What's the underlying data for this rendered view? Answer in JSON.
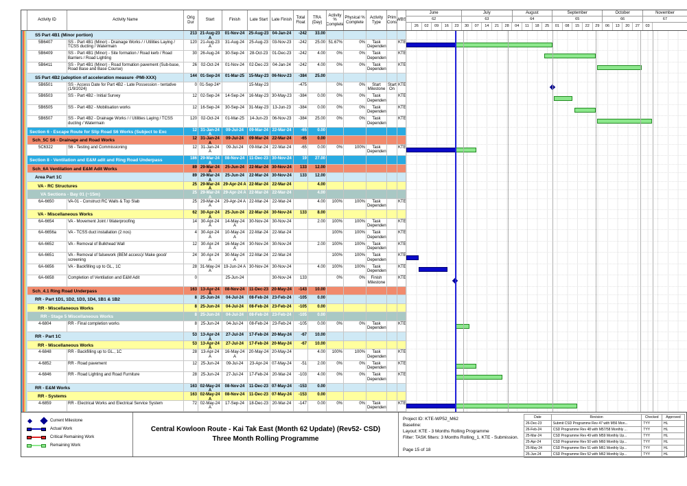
{
  "title": {
    "line1": "Central Kowloon Route - Kai Tak East (Month 62 Update) (Rev52- CSD)",
    "line2": "Three Month Rolling Programme"
  },
  "table": {
    "columns": [
      "Activity ID",
      "Activity Name",
      "Orig Dur",
      "Start",
      "Finish",
      "Late Start",
      "Late Finish",
      "Total Float",
      "TRA (Day)",
      "Activity % Complete",
      "Physical % Complete",
      "Activity Type",
      "Prim Cons",
      "WBS"
    ]
  },
  "timeline": {
    "months": [
      {
        "label": "June",
        "num": "62",
        "weeks": [
          "26",
          "02",
          "09",
          "16",
          "23"
        ],
        "lead": 8
      },
      {
        "label": "July",
        "num": "63",
        "weeks": [
          "30",
          "07",
          "14",
          "21",
          "28"
        ],
        "lead": 0
      },
      {
        "label": "August",
        "num": "64",
        "weeks": [
          "04",
          "11",
          "18",
          "25"
        ],
        "lead": 0
      },
      {
        "label": "September",
        "num": "65",
        "weeks": [
          "01",
          "08",
          "15",
          "22",
          "29"
        ],
        "lead": 0
      },
      {
        "label": "October",
        "num": "66",
        "weeks": [
          "06",
          "13",
          "20",
          "27"
        ],
        "lead": 0
      },
      {
        "label": "November",
        "num": "67",
        "weeks": [
          "03"
        ],
        "lead": 0,
        "fill": true
      }
    ]
  },
  "gantt": {
    "data_date_x": 71,
    "month_lines": [
      83,
      148,
      213,
      276,
      341
    ],
    "right_edge": 359
  },
  "rows": [
    {
      "t": "part",
      "nm": "S5 Part 4B1 (Minor portion)",
      "d": "213",
      "s": "21-Aug-23 A",
      "f": "01-Nov-24",
      "ls": "25-Aug-23",
      "lf": "04-Jan-24",
      "tf": "-242",
      "tra": "33.00",
      "ap": "",
      "pp": "",
      "at": "",
      "pc": "",
      "wbs": ""
    },
    {
      "t": "task",
      "id": "5B6407",
      "nm": "SS - Part 4B1 (Minor) -  Drainage Works /  / Utilities Laying / TCSS ducting / Watermain",
      "d": "120",
      "s": "21-Aug-23 A",
      "f": "31-Aug-24",
      "ls": "25-Aug-23",
      "lf": "03-Nov-23",
      "tf": "-242",
      "tra": "25.00",
      "ap": "51.67%",
      "pp": "0%",
      "at": "Task Dependent",
      "pc": "",
      "wbs": "KTE-",
      "bar": {
        "a": [
          0,
          71
        ],
        "r": [
          71,
          140
        ]
      }
    },
    {
      "t": "task",
      "id": "5B6409",
      "nm": "SS - Part 4B1 (Minor) - Site formation / Road kerb / Road Barriers / Road Lighting",
      "d": "30",
      "s": "26-Aug-24",
      "f": "30-Sep-24",
      "ls": "28-Oct-23",
      "lf": "01-Dec-23",
      "tf": "-242",
      "tra": "4.00",
      "ap": "0%",
      "pp": "0%",
      "at": "Task Dependent",
      "pc": "",
      "wbs": "KTE-",
      "bar": {
        "r": [
          201,
          73
        ]
      }
    },
    {
      "t": "task",
      "id": "5B6411",
      "nm": "SS - Part 4B1 (Minor) - Road formation pavement (Sub-base, Road Base and Base Course)",
      "d": "26",
      "s": "02-Oct-24",
      "f": "01-Nov-24",
      "ls": "02-Dec-23",
      "lf": "04-Jan-24",
      "tf": "-242",
      "tra": "4.00",
      "ap": "0%",
      "pp": "0%",
      "at": "Task Dependent",
      "pc": "",
      "wbs": "KTE-",
      "bar": {
        "r": [
          278,
          63
        ]
      }
    },
    {
      "t": "part",
      "nm": "S5 Part 4B2 (adoption of acceleration measure -PMI-XXX)",
      "d": "144",
      "s": "01-Sep-24",
      "f": "01-Mar-25",
      "ls": "15-May-23",
      "lf": "06-Nov-23",
      "tf": "-384",
      "tra": "25.00",
      "ap": "",
      "pp": "",
      "at": "",
      "pc": "",
      "wbs": ""
    },
    {
      "t": "task",
      "id": "5B6501",
      "nm": "SS - Access Date for Part 4B2 - Late Possession - tentative (1/9/2024)",
      "d": "0",
      "s": "01-Sep-24*",
      "f": "",
      "ls": "15-May-23",
      "lf": "",
      "tf": "-475",
      "tra": "",
      "ap": "0%",
      "pp": "0%",
      "at": "Start Milestone",
      "pc": "Start On",
      "wbs": "KTE-",
      "bar": {
        "m": 213
      }
    },
    {
      "t": "task",
      "id": "5B6503",
      "nm": "SS - Part 4B2 -  Initial Survey",
      "d": "12",
      "s": "02-Sep-24",
      "f": "14-Sep-24",
      "ls": "16-May-23",
      "lf": "30-May-23",
      "tf": "-384",
      "tra": "0.00",
      "ap": "0%",
      "pp": "0%",
      "at": "Task Dependent",
      "pc": "",
      "wbs": "KTE-",
      "bar": {
        "r": [
          215,
          25
        ]
      }
    },
    {
      "t": "task",
      "id": "5B6505",
      "nm": "SS - Part 4B2 - Mobilisation works",
      "d": "12",
      "s": "16-Sep-24",
      "f": "30-Sep-24",
      "ls": "31-May-23",
      "lf": "13-Jun-23",
      "tf": "-384",
      "tra": "0.00",
      "ap": "0%",
      "pp": "0%",
      "at": "Task Dependent",
      "pc": "",
      "wbs": "KTE-",
      "bar": {
        "r": [
          245,
          29
        ]
      }
    },
    {
      "t": "task",
      "id": "5B6507",
      "nm": "SS - Part 4B2 -  Drainage Works /  / Utilities Laying / TCSS ducting / Watermain",
      "d": "120",
      "s": "02-Oct-24",
      "f": "01-Mar-25",
      "ls": "14-Jun-23",
      "lf": "06-Nov-23",
      "tf": "-384",
      "tra": "25.00",
      "ap": "0%",
      "pp": "0%",
      "at": "Task Dependent",
      "pc": "",
      "wbs": "KTE-",
      "bar": {
        "r": [
          278,
          78
        ]
      }
    },
    {
      "t": "section",
      "nm": "Section 6 - Escape Route for Slip Road S6 Works (Subject to Exc",
      "d": "12",
      "s": "31-Jan-24 A",
      "f": "09-Jul-24",
      "ls": "09-Mar-24",
      "lf": "22-Mar-24",
      "tf": "-65",
      "tra": "0.00",
      "ap": "",
      "pp": "",
      "at": "",
      "pc": "",
      "wbs": ""
    },
    {
      "t": "sch",
      "nm": "Sch_5C S6 - Drainage and Road Works",
      "d": "12",
      "s": "31-Jan-24 A",
      "f": "09-Jul-24",
      "ls": "09-Mar-24",
      "lf": "22-Mar-24",
      "tf": "-65",
      "tra": "0.00",
      "ap": "",
      "pp": "",
      "at": "",
      "pc": "",
      "wbs": ""
    },
    {
      "t": "task",
      "id": "5C6322",
      "nm": "S6 - Testing and Commissioning",
      "d": "12",
      "s": "31-Jan-24 A",
      "f": "09-Jul-24",
      "ls": "09-Mar-24",
      "lf": "22-Mar-24",
      "tf": "-65",
      "tra": "0.00",
      "ap": "0%",
      "pp": "100%",
      "at": "Task Dependent",
      "pc": "",
      "wbs": "KTE-",
      "bar": {
        "a": [
          0,
          71
        ],
        "r": [
          71,
          29
        ]
      }
    },
    {
      "t": "section",
      "nm": "Section 8 - Ventilation and E&M adit and Ring Road Underpass",
      "d": "186",
      "s": "29-Mar-24 A",
      "f": "08-Nov-24",
      "ls": "11-Dec-23",
      "lf": "30-Nov-24",
      "tf": "19",
      "tra": "27.00",
      "ap": "",
      "pp": "",
      "at": "",
      "pc": "",
      "wbs": ""
    },
    {
      "t": "sch",
      "nm": "Sch_6A Ventilation and E&M Adit Works",
      "d": "89",
      "s": "29-Mar-24 A",
      "f": "25-Jun-24",
      "ls": "22-Mar-24",
      "lf": "30-Nov-24",
      "tf": "133",
      "tra": "12.00",
      "ap": "",
      "pp": "",
      "at": "",
      "pc": "",
      "wbs": ""
    },
    {
      "t": "part",
      "nm": "Area Part 1C",
      "d": "89",
      "s": "29-Mar-24 A",
      "f": "25-Jun-24",
      "ls": "22-Mar-24",
      "lf": "30-Nov-24",
      "tf": "133",
      "tra": "12.00",
      "ap": "",
      "pp": "",
      "at": "",
      "pc": "",
      "wbs": ""
    },
    {
      "t": "sub",
      "nm": "VA - RC Structures",
      "d": "25",
      "s": "29-Mar-24 A",
      "f": "29-Apr-24 A",
      "ls": "22-Mar-24",
      "lf": "22-Mar-24",
      "tf": "",
      "tra": "4.00",
      "ap": "",
      "pp": "",
      "at": "",
      "pc": "",
      "wbs": ""
    },
    {
      "t": "bay",
      "nm": "VA Sections - Bay 01 (~15m)",
      "d": "25",
      "s": "29-Mar-24 A",
      "f": "29-Apr-24 A",
      "ls": "22-Mar-24",
      "lf": "22-Mar-24",
      "tf": "",
      "tra": "4.00",
      "ap": "",
      "pp": "",
      "at": "",
      "pc": "",
      "wbs": ""
    },
    {
      "t": "task",
      "id": "6A-6650",
      "nm": "VA-01 - Construct RC Walls & Top Slab",
      "d": "25",
      "s": "29-Mar-24 A",
      "f": "29-Apr-24 A",
      "ls": "22-Mar-24",
      "lf": "22-Mar-24",
      "tf": "",
      "tra": "4.00",
      "ap": "100%",
      "pp": "100%",
      "at": "Task Dependent",
      "pc": "",
      "wbs": "KTE-"
    },
    {
      "t": "sub",
      "nm": "VA - Miscellaneous Works",
      "d": "62",
      "s": "30-Apr-24 A",
      "f": "25-Jun-24",
      "ls": "22-Mar-24",
      "lf": "30-Nov-24",
      "tf": "133",
      "tra": "8.00",
      "ap": "",
      "pp": "",
      "at": "",
      "pc": "",
      "wbs": ""
    },
    {
      "t": "task",
      "id": "6A-6654",
      "nm": "VA - Movement Joint / Waterproofing",
      "d": "14",
      "s": "30-Apr-24 A",
      "f": "14-May-24 A",
      "ls": "30-Nov-24",
      "lf": "30-Nov-24",
      "tf": "",
      "tra": "2.00",
      "ap": "100%",
      "pp": "100%",
      "at": "Task Dependent",
      "pc": "",
      "wbs": "KTE-"
    },
    {
      "t": "task",
      "id": "6A-6656a",
      "nm": "VA - TCSS duct installation (2 nos)",
      "d": "4",
      "s": "30-Apr-24 A",
      "f": "10-May-24 A",
      "ls": "22-Mar-24",
      "lf": "22-Mar-24",
      "tf": "",
      "tra": "",
      "ap": "100%",
      "pp": "100%",
      "at": "Task Dependent",
      "pc": "",
      "wbs": "KTE-"
    },
    {
      "t": "task",
      "id": "6A-6652",
      "nm": "VA - Removal of Bulkhead Wall",
      "d": "12",
      "s": "30-Apr-24 A",
      "f": "16-May-24 A",
      "ls": "30-Nov-24",
      "lf": "30-Nov-24",
      "tf": "",
      "tra": "2.00",
      "ap": "100%",
      "pp": "100%",
      "at": "Task Dependent",
      "pc": "",
      "wbs": "KTE-"
    },
    {
      "t": "task",
      "id": "6A-6651",
      "nm": "VA - Removal of falsework (BEM access)/ Make good/ screening",
      "d": "24",
      "s": "30-Apr-24 A",
      "f": "30-May-24 A",
      "ls": "22-Mar-24",
      "lf": "22-Mar-24",
      "tf": "",
      "tra": "",
      "ap": "100%",
      "pp": "100%",
      "at": "Task Dependent",
      "pc": "",
      "wbs": "KTE-",
      "bar": {
        "a": [
          0,
          16
        ]
      }
    },
    {
      "t": "task",
      "id": "6A-6656",
      "nm": "VA - Backfilling up to GL., 1C",
      "d": "28",
      "s": "31-May-24 A",
      "f": "19-Jun-24 A",
      "ls": "30-Nov-24",
      "lf": "30-Nov-24",
      "tf": "",
      "tra": "4.00",
      "ap": "100%",
      "pp": "100%",
      "at": "Task Dependent",
      "pc": "",
      "wbs": "KTE-",
      "bar": {
        "a": [
          18,
          40
        ]
      }
    },
    {
      "t": "task",
      "id": "6A-6658",
      "nm": "Completion of Ventilation and E&M Adit",
      "d": "0",
      "s": "",
      "f": "25-Jun-24",
      "ls": "",
      "lf": "30-Nov-24",
      "tf": "133",
      "tra": "",
      "ap": "0%",
      "pp": "0%",
      "at": "Finish Milestone",
      "pc": "",
      "wbs": "KTE-",
      "bar": {
        "m": 71
      }
    },
    {
      "t": "sch",
      "nm": "Sch_4.1 Ring Road Underpass",
      "d": "163",
      "s": "13-Apr-24 A",
      "f": "08-Nov-24",
      "ls": "11-Dec-23",
      "lf": "20-May-24",
      "tf": "-143",
      "tra": "10.00",
      "ap": "",
      "pp": "",
      "at": "",
      "pc": "",
      "wbs": ""
    },
    {
      "t": "part",
      "nm": "RR - Part 1D1, 1D2, 1D3, 1D4, 1B1 & 1B2",
      "d": "8",
      "s": "25-Jun-24",
      "f": "04-Jul-24",
      "ls": "08-Feb-24",
      "lf": "23-Feb-24",
      "tf": "-105",
      "tra": "0.00",
      "ap": "",
      "pp": "",
      "at": "",
      "pc": "",
      "wbs": ""
    },
    {
      "t": "sub",
      "nm": "RR - Miscellaneous Works",
      "d": "8",
      "s": "25-Jun-24",
      "f": "04-Jul-24",
      "ls": "08-Feb-24",
      "lf": "23-Feb-24",
      "tf": "-105",
      "tra": "0.00",
      "ap": "",
      "pp": "",
      "at": "",
      "pc": "",
      "wbs": ""
    },
    {
      "t": "bay",
      "nm": "RR - Stage 5 Miscellaneous Works",
      "d": "8",
      "s": "25-Jun-24",
      "f": "04-Jul-24",
      "ls": "08-Feb-24",
      "lf": "23-Feb-24",
      "tf": "-105",
      "tra": "0.00",
      "ap": "",
      "pp": "",
      "at": "",
      "pc": "",
      "wbs": ""
    },
    {
      "t": "task",
      "id": "4-6804",
      "nm": "RR - Final completion works",
      "d": "8",
      "s": "25-Jun-24",
      "f": "04-Jul-24",
      "ls": "08-Feb-24",
      "lf": "23-Feb-24",
      "tf": "-105",
      "tra": "0.00",
      "ap": "0%",
      "pp": "0%",
      "at": "Task Dependent",
      "pc": "",
      "wbs": "KTE-",
      "bar": {
        "r": [
          71,
          19
        ]
      }
    },
    {
      "t": "part",
      "nm": "RR - Part 1C",
      "d": "53",
      "s": "13-Apr-24 A",
      "f": "27-Jul-24",
      "ls": "17-Feb-24",
      "lf": "20-May-24",
      "tf": "-67",
      "tra": "10.00",
      "ap": "",
      "pp": "",
      "at": "",
      "pc": "",
      "wbs": ""
    },
    {
      "t": "sub",
      "nm": "RR - Miscellaneous Works",
      "d": "53",
      "s": "13-Apr-24 A",
      "f": "27-Jul-24",
      "ls": "17-Feb-24",
      "lf": "20-May-24",
      "tf": "-67",
      "tra": "10.00",
      "ap": "",
      "pp": "",
      "at": "",
      "pc": "",
      "wbs": ""
    },
    {
      "t": "task",
      "id": "4-6848",
      "nm": "RR - Backfilling up to GL., 1C",
      "d": "28",
      "s": "13-Apr-24 A",
      "f": "16-May-24 A",
      "ls": "20-May-24",
      "lf": "20-May-24",
      "tf": "",
      "tra": "4.00",
      "ap": "100%",
      "pp": "100%",
      "at": "Task Dependent",
      "pc": "",
      "wbs": "KTE-"
    },
    {
      "t": "task",
      "id": "4-6852",
      "nm": "RR - Road pavement",
      "d": "12",
      "s": "25-Jun-24",
      "f": "09-Jul-24",
      "ls": "23-Apr-24",
      "lf": "07-May-24",
      "tf": "-51",
      "tra": "2.00",
      "ap": "0%",
      "pp": "0%",
      "at": "Task Dependent",
      "pc": "",
      "wbs": "KTE-",
      "bar": {
        "r": [
          71,
          29
        ]
      }
    },
    {
      "t": "task",
      "id": "4-6846",
      "nm": "RR - Road Lighting and Road Furniture",
      "d": "28",
      "s": "25-Jun-24",
      "f": "27-Jul-24",
      "ls": "17-Feb-24",
      "lf": "20-Mar-24",
      "tf": "-103",
      "tra": "4.00",
      "ap": "0%",
      "pp": "0%",
      "at": "Task Dependent",
      "pc": "",
      "wbs": "KTE-",
      "bar": {
        "r": [
          71,
          67
        ]
      }
    },
    {
      "t": "part",
      "nm": "RR - E&M Works",
      "d": "163",
      "s": "02-May-24 A",
      "f": "08-Nov-24",
      "ls": "11-Dec-23",
      "lf": "07-May-24",
      "tf": "-153",
      "tra": "0.00",
      "ap": "",
      "pp": "",
      "at": "",
      "pc": "",
      "wbs": ""
    },
    {
      "t": "sub",
      "nm": "RR - Systems",
      "d": "163",
      "s": "02-May-24 A",
      "f": "08-Nov-24",
      "ls": "11-Dec-23",
      "lf": "07-May-24",
      "tf": "-153",
      "tra": "0.00",
      "ap": "",
      "pp": "",
      "at": "",
      "pc": "",
      "wbs": ""
    },
    {
      "t": "task",
      "id": "4-6859",
      "nm": "RR - Electrical Works and  Electrical Service System",
      "d": "72",
      "s": "02-May-24 A",
      "f": "17-Sep-24",
      "ls": "18-Dec-23",
      "lf": "20-Mar-24",
      "tf": "-147",
      "tra": "0.00",
      "ap": "0%",
      "pp": "0%",
      "at": "Task Dependent",
      "pc": "",
      "wbs": "KTE-",
      "bar": {
        "a": [
          0,
          71
        ],
        "r": [
          71,
          176
        ]
      }
    }
  ],
  "legend": {
    "items": [
      {
        "kind": "milestone",
        "label": "Current Milestone"
      },
      {
        "kind": "actual",
        "label": "Actual Work"
      },
      {
        "kind": "critical",
        "label": "Critical Remaining Work"
      },
      {
        "kind": "remaining",
        "label": "Remaining Work"
      }
    ]
  },
  "footer_info": {
    "project_id": "Project ID: KTE-WP52_M62",
    "baseline": "Baseline:",
    "layout": "Layout: KTE - 3 Months Rolling Programme",
    "filter": "Filter: TASK filters: 3 Months Rolling_1, KTE - Submission.",
    "page": "Page 15 of 18"
  },
  "revisions": {
    "headers": [
      "Date",
      "Revision",
      "Checked",
      "Approved"
    ],
    "rows": [
      [
        "26-Dec-23",
        "Submit CSD Programme Rev 47 with M56 Mon...",
        "TYY",
        "HL"
      ],
      [
        "26-Feb-24",
        "CSD Programme Rev 48 with M57/58 Monthly ...",
        "TYY",
        "HL"
      ],
      [
        "25-Mar-24",
        "CSD Programme Rev 49 with M59 Monthly Up...",
        "TYY",
        "HL"
      ],
      [
        "25-Apr-24",
        "CSD Programme Rev 50 with M60 Monthly Up...",
        "TYY",
        "HL"
      ],
      [
        "25-May-24",
        "CSD Programme Rev 51 with M61 Monthly Up...",
        "TYY",
        "HL"
      ],
      [
        "25-Jun-24",
        "CSD Programme Rev 52 with M62 Monthly Up...",
        "TYY",
        "HL"
      ]
    ]
  },
  "colors": {
    "section_bg": "#29ABE2",
    "sch_bg": "#F18A6D",
    "part_bg": "#CFE9F5",
    "sub_bg": "#FFFF9E",
    "bay_bg": "#A9C8C4",
    "actual_bar": "#0A0AC8",
    "remaining_bar": "#8CE78C",
    "remaining_border": "#218A21",
    "critical_bar": "#E02020",
    "milestone": "#000090",
    "data_date_line": "#2222DD"
  }
}
